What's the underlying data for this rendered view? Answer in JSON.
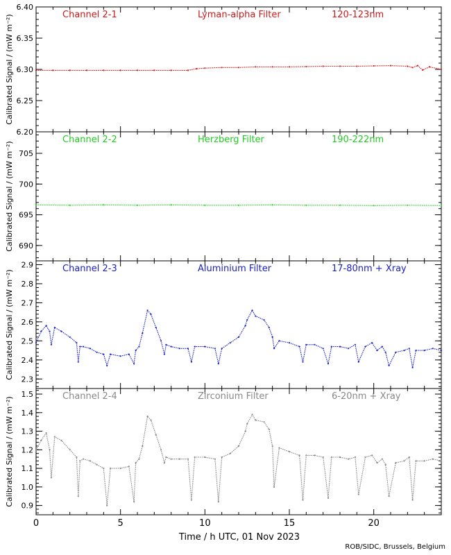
{
  "credit": "ROB/SIDC, Brussels, Belgium",
  "xlabel": "Time / h UTC, 01 Nov 2023",
  "x_ticks": [
    "0",
    "5",
    "10",
    "15",
    "20"
  ],
  "chart_data": [
    {
      "type": "scatter",
      "title": "Channel 2-1",
      "filter": "Lyman-alpha Filter",
      "band": "120-123nm",
      "color": "#d01818",
      "ylabel": "Calibrated Signal / (mW m⁻²)",
      "xlim": [
        0,
        24
      ],
      "ylim": [
        6.2,
        6.4
      ],
      "y_ticks": [
        "6.20",
        "6.25",
        "6.30",
        "6.35",
        "6.40"
      ],
      "x": [
        0,
        1,
        2,
        3,
        4,
        5,
        6,
        7,
        8,
        9,
        9.5,
        10,
        11,
        12,
        13,
        14,
        15,
        16,
        17,
        18,
        19,
        20,
        21,
        22,
        22.3,
        22.6,
        22.9,
        23.3,
        24
      ],
      "values": [
        6.2985,
        6.2985,
        6.2985,
        6.2985,
        6.2985,
        6.2985,
        6.2985,
        6.2985,
        6.2985,
        6.2985,
        6.301,
        6.302,
        6.303,
        6.303,
        6.304,
        6.304,
        6.304,
        6.3045,
        6.305,
        6.305,
        6.305,
        6.3055,
        6.306,
        6.305,
        6.303,
        6.306,
        6.299,
        6.304,
        6.3
      ]
    },
    {
      "type": "scatter",
      "title": "Channel 2-2",
      "filter": "Herzberg Filter",
      "band": "190-222nm",
      "color": "#22cc22",
      "ylabel": "Calibrated Signal / (mW m⁻²)",
      "xlim": [
        0,
        24
      ],
      "ylim": [
        687.5,
        708.5
      ],
      "y_ticks": [
        "690",
        "695",
        "700",
        "705"
      ],
      "x": [
        0,
        2,
        4,
        6,
        8,
        10,
        12,
        14,
        16,
        18,
        20,
        22,
        24
      ],
      "values": [
        696.6,
        696.55,
        696.6,
        696.55,
        696.6,
        696.55,
        696.55,
        696.6,
        696.55,
        696.55,
        696.5,
        696.55,
        696.5
      ]
    },
    {
      "type": "scatter",
      "title": "Channel 2-3",
      "filter": "Aluminium Filter",
      "band": "17-80nm + Xray",
      "color": "#1a20c8",
      "ylabel": "Calibrated Signal / (mW m⁻²)",
      "xlim": [
        0,
        24
      ],
      "ylim": [
        2.25,
        2.92
      ],
      "y_ticks": [
        "2.3",
        "2.4",
        "2.5",
        "2.6",
        "2.7",
        "2.8",
        "2.9"
      ],
      "x": [
        0,
        0.3,
        0.6,
        0.8,
        0.9,
        1.1,
        1.5,
        2.0,
        2.4,
        2.5,
        2.6,
        2.8,
        3.2,
        3.6,
        4.0,
        4.2,
        4.4,
        5.0,
        5.5,
        5.8,
        5.9,
        6.1,
        6.3,
        6.6,
        6.8,
        7.1,
        7.4,
        7.6,
        7.7,
        8.0,
        8.5,
        9.0,
        9.2,
        9.4,
        10.0,
        10.6,
        10.8,
        11.0,
        11.5,
        12.0,
        12.4,
        12.5,
        12.8,
        13.0,
        13.5,
        13.8,
        14.0,
        14.1,
        14.4,
        15.0,
        15.6,
        15.8,
        16.0,
        16.5,
        17.0,
        17.3,
        17.5,
        18.0,
        18.5,
        18.9,
        19.1,
        19.5,
        19.9,
        20.2,
        20.5,
        20.7,
        20.9,
        21.3,
        21.8,
        22.1,
        22.3,
        22.5,
        23.0,
        23.5,
        24.0
      ],
      "values": [
        2.49,
        2.55,
        2.58,
        2.55,
        2.48,
        2.57,
        2.55,
        2.52,
        2.49,
        2.39,
        2.47,
        2.47,
        2.46,
        2.44,
        2.43,
        2.37,
        2.43,
        2.42,
        2.43,
        2.38,
        2.45,
        2.47,
        2.54,
        2.66,
        2.64,
        2.57,
        2.5,
        2.43,
        2.48,
        2.47,
        2.46,
        2.46,
        2.39,
        2.47,
        2.47,
        2.46,
        2.38,
        2.46,
        2.49,
        2.52,
        2.58,
        2.61,
        2.66,
        2.63,
        2.61,
        2.57,
        2.52,
        2.46,
        2.5,
        2.49,
        2.47,
        2.39,
        2.48,
        2.48,
        2.46,
        2.38,
        2.47,
        2.47,
        2.46,
        2.48,
        2.39,
        2.47,
        2.49,
        2.45,
        2.47,
        2.44,
        2.37,
        2.44,
        2.45,
        2.46,
        2.36,
        2.45,
        2.45,
        2.46,
        2.45
      ]
    },
    {
      "type": "scatter",
      "title": "Channel 2-4",
      "filter": "Zirconium Filter",
      "band": "6-20nm + Xray",
      "color": "#888888",
      "ylabel": "Calibrated Signal / (mW m⁻²)",
      "xlim": [
        0,
        24
      ],
      "ylim": [
        0.85,
        1.53
      ],
      "y_ticks": [
        "0.9",
        "1.0",
        "1.1",
        "1.2",
        "1.3",
        "1.4",
        "1.5"
      ],
      "x": [
        0,
        0.3,
        0.6,
        0.8,
        0.9,
        1.1,
        1.5,
        2.0,
        2.4,
        2.5,
        2.6,
        2.8,
        3.2,
        3.6,
        4.0,
        4.2,
        4.4,
        5.0,
        5.5,
        5.8,
        5.9,
        6.1,
        6.3,
        6.6,
        6.8,
        7.1,
        7.4,
        7.6,
        7.7,
        8.0,
        8.5,
        9.0,
        9.2,
        9.4,
        10.0,
        10.6,
        10.8,
        11.0,
        11.5,
        12.0,
        12.4,
        12.5,
        12.8,
        13.0,
        13.5,
        13.8,
        14.0,
        14.1,
        14.4,
        15.0,
        15.6,
        15.8,
        16.0,
        16.5,
        17.0,
        17.3,
        17.5,
        18.0,
        18.5,
        18.9,
        19.1,
        19.5,
        19.9,
        20.2,
        20.5,
        20.7,
        20.9,
        21.3,
        21.8,
        22.1,
        22.3,
        22.5,
        23.0,
        23.5,
        24.0
      ],
      "values": [
        1.2,
        1.25,
        1.29,
        1.2,
        1.05,
        1.27,
        1.25,
        1.2,
        1.16,
        0.95,
        1.14,
        1.15,
        1.14,
        1.12,
        1.1,
        0.9,
        1.1,
        1.1,
        1.11,
        0.92,
        1.13,
        1.15,
        1.22,
        1.38,
        1.36,
        1.28,
        1.2,
        1.13,
        1.16,
        1.15,
        1.15,
        1.15,
        0.93,
        1.16,
        1.16,
        1.15,
        0.92,
        1.16,
        1.18,
        1.22,
        1.3,
        1.34,
        1.39,
        1.36,
        1.35,
        1.31,
        1.22,
        1.0,
        1.21,
        1.19,
        1.17,
        0.93,
        1.17,
        1.17,
        1.16,
        0.94,
        1.16,
        1.16,
        1.15,
        1.16,
        0.96,
        1.16,
        1.17,
        1.13,
        1.15,
        1.12,
        0.95,
        1.13,
        1.14,
        1.16,
        0.93,
        1.14,
        1.14,
        1.15,
        1.14
      ]
    }
  ]
}
